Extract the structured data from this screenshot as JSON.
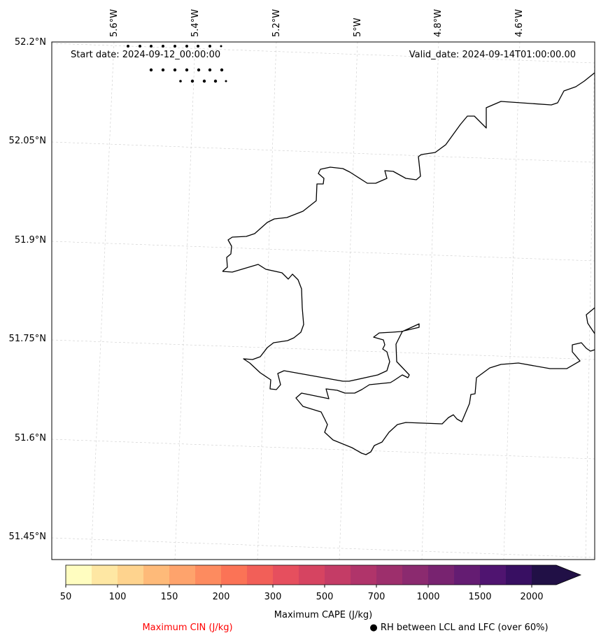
{
  "map": {
    "start_date_label": "Start date: 2024-09-12_00:00:00",
    "valid_date_label": "Valid_date: 2024-09-14T01:00:00.00",
    "lat_labels": [
      "52.2°N",
      "52.05°N",
      "51.9°N",
      "51.75°N",
      "51.6°N",
      "51.45°N"
    ],
    "lon_labels": [
      "5.6°W",
      "5.4°W",
      "5.2°W",
      "5°W",
      "4.8°W",
      "4.6°W"
    ],
    "coastline_color": "#000000",
    "gridline_color": "#cccccc",
    "rh_marker_color": "#000000"
  },
  "colorbar": {
    "title": "Maximum CAPE (J/kg)",
    "tick_labels": [
      "50",
      "100",
      "150",
      "200",
      "300",
      "500",
      "700",
      "1000",
      "1500",
      "2000"
    ],
    "colors": [
      "#fffdc0",
      "#fee7a3",
      "#fed38e",
      "#feba79",
      "#fea36c",
      "#fd8b5f",
      "#fb7356",
      "#f25f58",
      "#e64f5e",
      "#d64461",
      "#c43c66",
      "#b0346a",
      "#9d2f6c",
      "#8b2a6f",
      "#782370",
      "#641c72",
      "#4f1470",
      "#380f62",
      "#211046"
    ],
    "extend": "max"
  },
  "legend": {
    "cin_label": "Maximum CIN (J/kg)",
    "cin_color": "#ff0000",
    "rh_label": "● RH between LCL and LFC (over 60%)"
  }
}
